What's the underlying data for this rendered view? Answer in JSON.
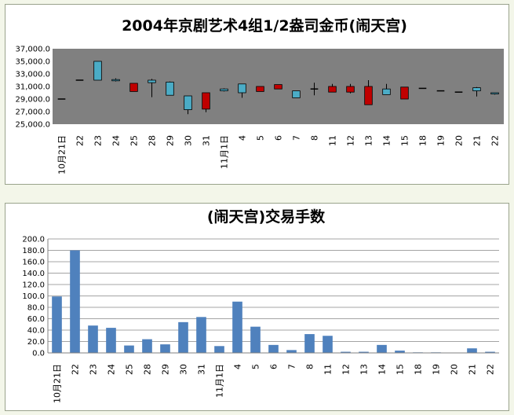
{
  "chart_data": [
    {
      "type": "candlestick",
      "title": "2004年京剧艺术4组1/2盎司金币(闹天宫)",
      "categories": [
        "10月21日",
        "22",
        "23",
        "24",
        "25",
        "28",
        "29",
        "30",
        "31",
        "11月1日",
        "4",
        "5",
        "6",
        "7",
        "8",
        "11",
        "12",
        "13",
        "14",
        "15",
        "18",
        "19",
        "20",
        "21",
        "22"
      ],
      "ylim": [
        25000,
        37000
      ],
      "yticks": [
        "25,000.0",
        "27,000.0",
        "29,000.0",
        "31,000.0",
        "33,000.0",
        "35,000.0",
        "37,000.0"
      ],
      "plot_background": "#808080",
      "up_color": "#4bacc6",
      "down_color": "#c00000",
      "candles": [
        {
          "open": 29000,
          "close": 29000,
          "high": 29000,
          "low": 29000
        },
        {
          "open": 32000,
          "close": 32000,
          "high": 32000,
          "low": 32000
        },
        {
          "open": 32000,
          "close": 35000,
          "high": 35000,
          "low": 32000
        },
        {
          "open": 31900,
          "close": 32100,
          "high": 32300,
          "low": 31800
        },
        {
          "open": 31500,
          "close": 30200,
          "high": 31500,
          "low": 30200
        },
        {
          "open": 31600,
          "close": 32000,
          "high": 32200,
          "low": 29300
        },
        {
          "open": 29600,
          "close": 31700,
          "high": 31800,
          "low": 29600
        },
        {
          "open": 27300,
          "close": 29500,
          "high": 29500,
          "low": 26600
        },
        {
          "open": 30000,
          "close": 27400,
          "high": 30000,
          "low": 26900
        },
        {
          "open": 30300,
          "close": 30600,
          "high": 30700,
          "low": 30200
        },
        {
          "open": 30000,
          "close": 31400,
          "high": 31400,
          "low": 29200
        },
        {
          "open": 31000,
          "close": 30200,
          "high": 31000,
          "low": 30200
        },
        {
          "open": 31300,
          "close": 30600,
          "high": 31300,
          "low": 30600
        },
        {
          "open": 29200,
          "close": 30300,
          "high": 30300,
          "low": 29200
        },
        {
          "open": 30600,
          "close": 30600,
          "high": 31600,
          "low": 29600
        },
        {
          "open": 31000,
          "close": 30100,
          "high": 31400,
          "low": 30100
        },
        {
          "open": 31000,
          "close": 30100,
          "high": 31400,
          "low": 29900
        },
        {
          "open": 31000,
          "close": 28100,
          "high": 32000,
          "low": 28100
        },
        {
          "open": 29700,
          "close": 30600,
          "high": 31400,
          "low": 29700
        },
        {
          "open": 30900,
          "close": 29000,
          "high": 30900,
          "low": 29000
        },
        {
          "open": 30700,
          "close": 30700,
          "high": 30700,
          "low": 30700
        },
        {
          "open": 30300,
          "close": 30300,
          "high": 30300,
          "low": 30300
        },
        {
          "open": 30100,
          "close": 30100,
          "high": 30100,
          "low": 30100
        },
        {
          "open": 30300,
          "close": 30800,
          "high": 30900,
          "low": 29400
        },
        {
          "open": 29800,
          "close": 30000,
          "high": 30000,
          "low": 29700
        }
      ]
    },
    {
      "type": "bar",
      "title": "(闹天宫)交易手数",
      "categories": [
        "10月21日",
        "22",
        "23",
        "24",
        "25",
        "28",
        "29",
        "30",
        "31",
        "11月1日",
        "4",
        "5",
        "6",
        "7",
        "8",
        "11",
        "12",
        "13",
        "14",
        "15",
        "18",
        "19",
        "20",
        "21",
        "22"
      ],
      "values": [
        99,
        180,
        48,
        44,
        13,
        24,
        15,
        54,
        63,
        12,
        90,
        46,
        14,
        5,
        33,
        30,
        2,
        2,
        14,
        4,
        1,
        1,
        0,
        8,
        2
      ],
      "ylim": [
        0,
        200
      ],
      "yticks": [
        "0.0",
        "20.0",
        "40.0",
        "60.0",
        "80.0",
        "100.0",
        "120.0",
        "140.0",
        "160.0",
        "180.0",
        "200.0"
      ],
      "bar_color": "#4f81bd",
      "grid": true
    }
  ]
}
